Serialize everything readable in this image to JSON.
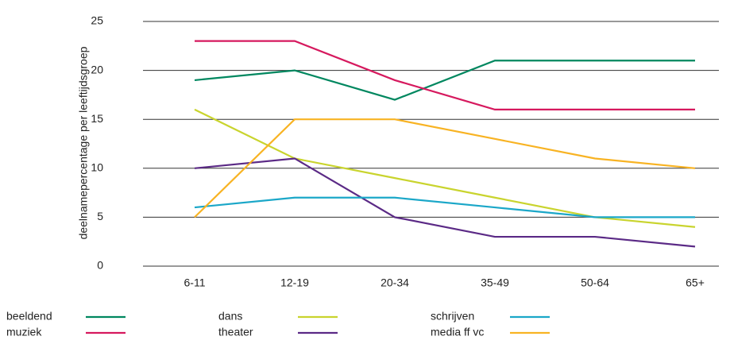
{
  "chart_data": {
    "type": "line",
    "y_label": "deelnamepercentage per leeftijdsgroep",
    "categories": [
      "6-11",
      "12-19",
      "20-34",
      "35-49",
      "50-64",
      "65+"
    ],
    "series": [
      {
        "name": "beeldend",
        "color": "#00875f",
        "values": [
          19,
          20,
          17,
          21,
          21,
          21
        ]
      },
      {
        "name": "muziek",
        "color": "#d6195e",
        "values": [
          23,
          23,
          19,
          16,
          16,
          16
        ]
      },
      {
        "name": "dans",
        "color": "#c9d42e",
        "values": [
          16,
          11,
          9,
          7,
          5,
          4
        ]
      },
      {
        "name": "theater",
        "color": "#5b2a86",
        "values": [
          10,
          11,
          5,
          3,
          3,
          2
        ]
      },
      {
        "name": "schrijven",
        "color": "#1ba7c8",
        "values": [
          6,
          7,
          7,
          6,
          5,
          5
        ]
      },
      {
        "name": "media ff vc",
        "color": "#f8b323",
        "values": [
          5,
          15,
          15,
          13,
          11,
          10
        ]
      }
    ],
    "ylim": [
      0,
      25
    ],
    "yticks": [
      0,
      5,
      10,
      15,
      20,
      25
    ],
    "grid": true,
    "legend": "bottom"
  }
}
